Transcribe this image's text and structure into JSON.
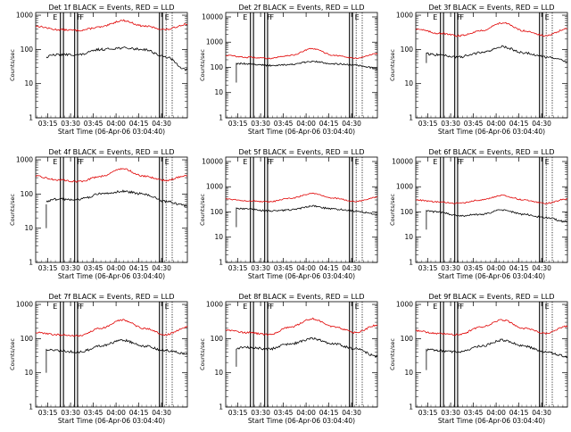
{
  "chart_data": [
    {
      "type": "line",
      "title": "Det 1f BLACK = Events, RED = LLD",
      "ylabel": "Counts/sec",
      "xlabel": "Start Time (06-Apr-06 03:04:40)",
      "y_ticks": [
        "1",
        "10",
        "100",
        "1000"
      ],
      "x_ticks": [
        "03:15",
        "03:30",
        "03:45",
        "04:00",
        "04:15",
        "04:30"
      ],
      "xlim_min": [
        0,
        100
      ],
      "ylim": [
        1,
        1200
      ],
      "yscale": "log",
      "events": {
        "levels": [
          50,
          70,
          70,
          100,
          110,
          100,
          60,
          25
        ],
        "pre_start": 50
      },
      "lld": {
        "levels": [
          480,
          380,
          360,
          450,
          700,
          480,
          380,
          550
        ],
        "start": 0
      },
      "markers_solid": [
        16.3,
        18.3,
        25.7,
        27.6,
        81.6,
        83.6
      ],
      "markers_dotted": [
        86,
        90
      ],
      "letters": [
        "E",
        "F",
        "F",
        "E"
      ]
    },
    {
      "type": "line",
      "title": "Det 2f BLACK = Events, RED = LLD",
      "ylabel": "Counts/sec",
      "xlabel": "Start Time (06-Apr-06 03:04:40)",
      "y_ticks": [
        "1",
        "10",
        "100",
        "1000",
        "10000"
      ],
      "x_ticks": [
        "03:15",
        "03:30",
        "03:45",
        "04:00",
        "04:15",
        "04:30"
      ],
      "xlim_min": [
        0,
        100
      ],
      "ylim": [
        1,
        15000
      ],
      "yscale": "log",
      "events": {
        "levels": [
          150,
          140,
          120,
          130,
          170,
          140,
          120,
          90
        ],
        "pre_start": 25
      },
      "lld": {
        "levels": [
          300,
          250,
          230,
          300,
          550,
          300,
          230,
          350
        ],
        "start": 0
      },
      "markers_solid": [
        16.3,
        18.3,
        25.7,
        27.6,
        81.6,
        83.6
      ],
      "markers_dotted": [
        86,
        90
      ],
      "letters": [
        "E",
        "F",
        "F",
        "E"
      ]
    },
    {
      "type": "line",
      "title": "Det 3f BLACK = Events, RED = LLD",
      "ylabel": "Counts/sec",
      "xlabel": "Start Time (06-Apr-06 03:04:40)",
      "y_ticks": [
        "1",
        "10",
        "100",
        "1000"
      ],
      "x_ticks": [
        "03:15",
        "03:30",
        "03:45",
        "04:00",
        "04:15",
        "04:30"
      ],
      "xlim_min": [
        0,
        100
      ],
      "ylim": [
        1,
        1200
      ],
      "yscale": "log",
      "events": {
        "levels": [
          80,
          70,
          60,
          80,
          120,
          80,
          60,
          45
        ],
        "pre_start": 40
      },
      "lld": {
        "levels": [
          400,
          300,
          250,
          350,
          600,
          350,
          250,
          400
        ],
        "start": 0
      },
      "markers_solid": [
        16.3,
        18.3,
        25.7,
        27.6,
        81.6,
        83.6
      ],
      "markers_dotted": [
        86,
        90
      ],
      "letters": [
        "E",
        "F",
        "F",
        "E"
      ]
    },
    {
      "type": "line",
      "title": "Det 4f BLACK = Events, RED = LLD",
      "ylabel": "Counts/sec",
      "xlabel": "Start Time (06-Apr-06 03:04:40)",
      "y_ticks": [
        "1",
        "10",
        "100",
        "1000"
      ],
      "x_ticks": [
        "03:15",
        "03:30",
        "03:45",
        "04:00",
        "04:15",
        "04:30"
      ],
      "xlim_min": [
        0,
        100
      ],
      "ylim": [
        1,
        1200
      ],
      "yscale": "log",
      "events": {
        "levels": [
          50,
          70,
          70,
          100,
          120,
          100,
          60,
          45
        ],
        "pre_start": 10
      },
      "lld": {
        "levels": [
          330,
          260,
          230,
          330,
          550,
          330,
          250,
          350
        ],
        "start": 0
      },
      "markers_solid": [
        16.3,
        18.3,
        25.7,
        27.6,
        81.6,
        83.6
      ],
      "markers_dotted": [
        86,
        90
      ],
      "letters": [
        "E",
        "F",
        "F",
        "E"
      ]
    },
    {
      "type": "line",
      "title": "Det 5f BLACK = Events, RED = LLD",
      "ylabel": "Counts/sec",
      "xlabel": "Start Time (06-Apr-06 03:04:40)",
      "y_ticks": [
        "1",
        "10",
        "100",
        "1000",
        "10000"
      ],
      "x_ticks": [
        "03:15",
        "03:30",
        "03:45",
        "04:00",
        "04:15",
        "04:30"
      ],
      "xlim_min": [
        0,
        100
      ],
      "ylim": [
        1,
        15000
      ],
      "yscale": "log",
      "events": {
        "levels": [
          150,
          130,
          110,
          120,
          170,
          130,
          110,
          80
        ],
        "pre_start": 25
      },
      "lld": {
        "levels": [
          330,
          280,
          250,
          350,
          550,
          350,
          260,
          380
        ],
        "start": 0
      },
      "markers_solid": [
        16.3,
        18.3,
        25.7,
        27.6,
        81.6,
        83.6
      ],
      "markers_dotted": [
        86,
        90
      ],
      "letters": [
        "E",
        "F",
        "F",
        "E"
      ]
    },
    {
      "type": "line",
      "title": "Det 6f BLACK = Events, RED = LLD",
      "ylabel": "Counts/sec",
      "xlabel": "Start Time (06-Apr-06 03:04:40)",
      "y_ticks": [
        "1",
        "10",
        "100",
        "1000",
        "10000"
      ],
      "x_ticks": [
        "03:15",
        "03:30",
        "03:45",
        "04:00",
        "04:15",
        "04:30"
      ],
      "xlim_min": [
        0,
        100
      ],
      "ylim": [
        1,
        15000
      ],
      "yscale": "log",
      "events": {
        "levels": [
          120,
          100,
          70,
          80,
          120,
          80,
          60,
          40
        ],
        "pre_start": 20
      },
      "lld": {
        "levels": [
          300,
          250,
          220,
          300,
          450,
          300,
          220,
          330
        ],
        "start": 0
      },
      "markers_solid": [
        16.3,
        18.3,
        25.7,
        27.6,
        81.6,
        83.6
      ],
      "markers_dotted": [
        86,
        90
      ],
      "letters": [
        "E",
        "F",
        "F",
        "E"
      ]
    },
    {
      "type": "line",
      "title": "Det 7f BLACK = Events, RED = LLD",
      "ylabel": "Counts/sec",
      "xlabel": "Start Time (06-Apr-06 03:04:40)",
      "y_ticks": [
        "1",
        "10",
        "100",
        "1000"
      ],
      "x_ticks": [
        "03:15",
        "03:30",
        "03:45",
        "04:00",
        "04:15",
        "04:30"
      ],
      "xlim_min": [
        0,
        100
      ],
      "ylim": [
        1,
        1200
      ],
      "yscale": "log",
      "events": {
        "levels": [
          50,
          45,
          40,
          60,
          90,
          60,
          45,
          35
        ],
        "pre_start": 10
      },
      "lld": {
        "levels": [
          150,
          130,
          120,
          200,
          350,
          200,
          130,
          220
        ],
        "start": 0
      },
      "markers_solid": [
        16.3,
        18.3,
        25.7,
        27.6,
        81.6,
        83.6
      ],
      "markers_dotted": [
        86,
        90
      ],
      "letters": [
        "E",
        "F",
        "F",
        "E"
      ]
    },
    {
      "type": "line",
      "title": "Det 8f BLACK = Events, RED = LLD",
      "ylabel": "Counts/sec",
      "xlabel": "Start Time (06-Apr-06 03:04:40)",
      "y_ticks": [
        "1",
        "10",
        "100",
        "1000"
      ],
      "x_ticks": [
        "03:15",
        "03:30",
        "03:45",
        "04:00",
        "04:15",
        "04:30"
      ],
      "xlim_min": [
        0,
        100
      ],
      "ylim": [
        1,
        1200
      ],
      "yscale": "log",
      "events": {
        "levels": [
          50,
          55,
          50,
          70,
          100,
          70,
          50,
          30
        ],
        "pre_start": 15
      },
      "lld": {
        "levels": [
          180,
          150,
          130,
          220,
          380,
          220,
          150,
          250
        ],
        "start": 0
      },
      "markers_solid": [
        16.3,
        18.3,
        25.7,
        27.6,
        81.6,
        83.6
      ],
      "markers_dotted": [
        86,
        90
      ],
      "letters": [
        "E",
        "F",
        "F",
        "E"
      ]
    },
    {
      "type": "line",
      "title": "Det 9f BLACK = Events, RED = LLD",
      "ylabel": "Counts/sec",
      "xlabel": "Start Time (06-Apr-06 03:04:40)",
      "y_ticks": [
        "1",
        "10",
        "100",
        "1000"
      ],
      "x_ticks": [
        "03:15",
        "03:30",
        "03:45",
        "04:00",
        "04:15",
        "04:30"
      ],
      "xlim_min": [
        0,
        100
      ],
      "ylim": [
        1,
        1200
      ],
      "yscale": "log",
      "events": {
        "levels": [
          50,
          45,
          40,
          60,
          90,
          60,
          40,
          30
        ],
        "pre_start": 12
      },
      "lld": {
        "levels": [
          170,
          140,
          130,
          220,
          350,
          200,
          140,
          230
        ],
        "start": 0
      },
      "markers_solid": [
        16.3,
        18.3,
        25.7,
        27.6,
        81.6,
        83.6
      ],
      "markers_dotted": [
        86,
        90
      ],
      "letters": [
        "E",
        "F",
        "F",
        "E"
      ]
    }
  ],
  "colors": {
    "events": "#000000",
    "lld": "#e00000",
    "axes": "#000000",
    "background": "#ffffff"
  }
}
